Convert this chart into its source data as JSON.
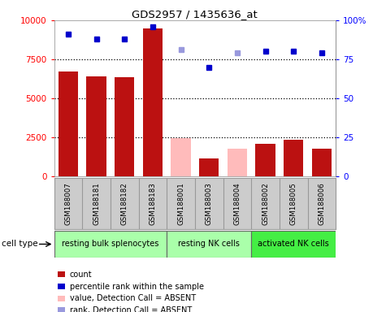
{
  "title": "GDS2957 / 1435636_at",
  "samples": [
    "GSM188007",
    "GSM188181",
    "GSM188182",
    "GSM188183",
    "GSM188001",
    "GSM188003",
    "GSM188004",
    "GSM188002",
    "GSM188005",
    "GSM188006"
  ],
  "groups": [
    {
      "label": "resting bulk splenocytes",
      "start": 0,
      "end": 4,
      "color": "#aaffaa"
    },
    {
      "label": "resting NK cells",
      "start": 4,
      "end": 7,
      "color": "#aaffaa"
    },
    {
      "label": "activated NK cells",
      "start": 7,
      "end": 10,
      "color": "#44ee44"
    }
  ],
  "bar_values": [
    6700,
    6400,
    6350,
    9500,
    2450,
    1150,
    1750,
    2100,
    2350,
    1750
  ],
  "bar_absent": [
    false,
    false,
    false,
    false,
    true,
    false,
    true,
    false,
    false,
    false
  ],
  "bar_colors_present": "#bb1111",
  "bar_colors_absent": "#ffbbbb",
  "rank_values": [
    91,
    88,
    88,
    96,
    81,
    70,
    79,
    80,
    80,
    79
  ],
  "rank_absent": [
    false,
    false,
    false,
    false,
    true,
    false,
    true,
    false,
    false,
    false
  ],
  "rank_colors_present": "#0000cc",
  "rank_colors_absent": "#9999dd",
  "ylim_left": [
    0,
    10000
  ],
  "ylim_right": [
    0,
    100
  ],
  "yticks_left": [
    0,
    2500,
    5000,
    7500,
    10000
  ],
  "yticks_right": [
    0,
    25,
    50,
    75,
    100
  ],
  "yticklabels_left": [
    "0",
    "2500",
    "5000",
    "7500",
    "10000"
  ],
  "yticklabels_right": [
    "0",
    "25",
    "50",
    "75",
    "100%"
  ],
  "legend_items": [
    {
      "label": "count",
      "color": "#bb1111"
    },
    {
      "label": "percentile rank within the sample",
      "color": "#0000cc"
    },
    {
      "label": "value, Detection Call = ABSENT",
      "color": "#ffbbbb"
    },
    {
      "label": "rank, Detection Call = ABSENT",
      "color": "#9999dd"
    }
  ],
  "cell_type_label": "cell type",
  "sample_box_color": "#cccccc",
  "sample_box_border": "#999999"
}
